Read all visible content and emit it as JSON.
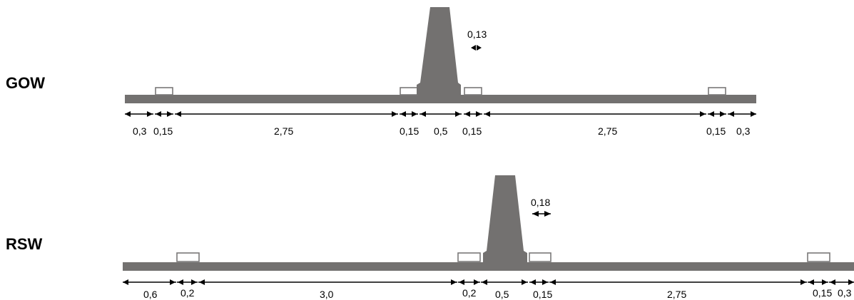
{
  "colors": {
    "road": "#737170",
    "chimney": "#737170",
    "rail_outline": "#7a7878",
    "text": "#000000"
  },
  "sections": [
    {
      "title": "GOW",
      "chimney_gap_label": "0,13",
      "dimensions": [
        {
          "label": "0,3"
        },
        {
          "label": "0,15"
        },
        {
          "label": "2,75"
        },
        {
          "label": "0,15"
        },
        {
          "label": "0,5"
        },
        {
          "label": "0,15"
        },
        {
          "label": "2,75"
        },
        {
          "label": "0,15"
        },
        {
          "label": "0,3"
        }
      ]
    },
    {
      "title": "RSW",
      "chimney_gap_label": "0,18",
      "dimensions": [
        {
          "label": "0,6"
        },
        {
          "label": "0,2"
        },
        {
          "label": "3,0"
        },
        {
          "label": "0,2"
        },
        {
          "label": "0,5"
        },
        {
          "label": "0,15"
        },
        {
          "label": "2,75"
        },
        {
          "label": "0,15"
        },
        {
          "label": "0,3"
        }
      ]
    }
  ]
}
